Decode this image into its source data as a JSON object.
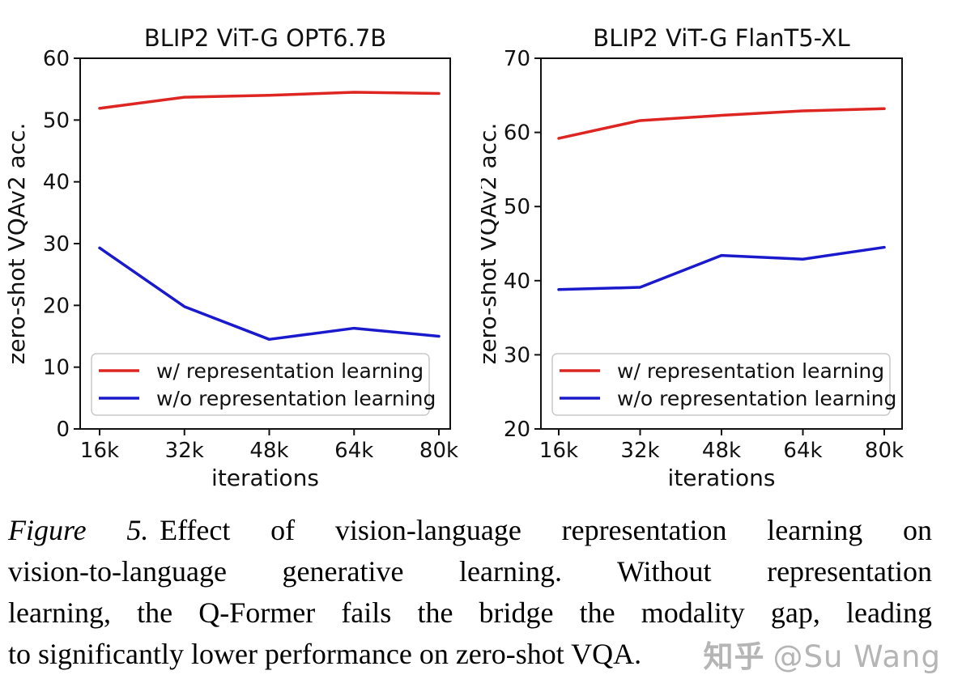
{
  "caption": {
    "label": "Figure 5.",
    "lines": [
      "Effect of vision-language representation learning on",
      "vision-to-language generative learning.  Without representation",
      "learning, the Q-Former fails the bridge the modality gap, leading",
      "to significantly lower performance on zero-shot VQA."
    ]
  },
  "watermark": {
    "brand": "知乎",
    "handle": "@Su Wang"
  },
  "colors": {
    "with_rep": "#dd2522",
    "without_rep": "#1a1acc",
    "axis": "#111111",
    "legend_border": "#c9c9c9",
    "watermark": "#b5b5b5"
  },
  "chart_data": [
    {
      "type": "line",
      "title": "BLIP2 ViT-G OPT6.7B",
      "xlabel": "iterations",
      "ylabel": "zero-shot VQAv2 acc.",
      "x": [
        16,
        32,
        48,
        64,
        80
      ],
      "x_tick_labels": [
        "16k",
        "32k",
        "48k",
        "64k",
        "80k"
      ],
      "ylim": [
        0,
        60
      ],
      "yticks": [
        0,
        10,
        20,
        30,
        40,
        50,
        60
      ],
      "grid": false,
      "legend_position": "lower left",
      "series": [
        {
          "name": "w/ representation learning",
          "color_key": "with_rep",
          "values": [
            51.9,
            53.7,
            54.0,
            54.5,
            54.3
          ]
        },
        {
          "name": "w/o representation learning",
          "color_key": "without_rep",
          "values": [
            29.3,
            19.8,
            14.5,
            16.3,
            15.0
          ]
        }
      ]
    },
    {
      "type": "line",
      "title": "BLIP2 ViT-G FlanT5-XL",
      "xlabel": "iterations",
      "ylabel": "zero-shot VQAv2 acc.",
      "x": [
        16,
        32,
        48,
        64,
        80
      ],
      "x_tick_labels": [
        "16k",
        "32k",
        "48k",
        "64k",
        "80k"
      ],
      "ylim": [
        20,
        70
      ],
      "yticks": [
        20,
        30,
        40,
        50,
        60,
        70
      ],
      "grid": false,
      "legend_position": "lower left",
      "series": [
        {
          "name": "w/ representation learning",
          "color_key": "with_rep",
          "values": [
            59.2,
            61.6,
            62.3,
            62.9,
            63.2
          ]
        },
        {
          "name": "w/o representation learning",
          "color_key": "without_rep",
          "values": [
            38.8,
            39.1,
            43.4,
            42.9,
            44.5
          ]
        }
      ]
    }
  ]
}
